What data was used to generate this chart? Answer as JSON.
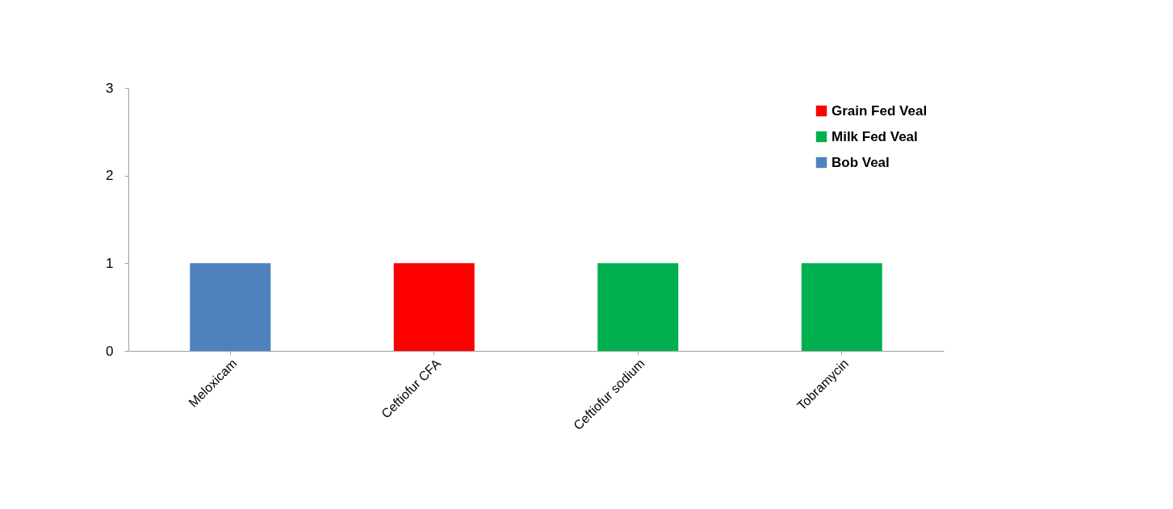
{
  "chart_data": {
    "type": "bar",
    "categories": [
      "Meloxicam",
      "Ceftiofur CFA",
      "Ceftiofur sodium",
      "Tobramycin"
    ],
    "series": [
      {
        "name": "Grain Fed Veal",
        "color": "#ff0000",
        "values": [
          null,
          1,
          null,
          null
        ]
      },
      {
        "name": "Milk Fed Veal",
        "color": "#00b050",
        "values": [
          null,
          null,
          1,
          1
        ]
      },
      {
        "name": "Bob Veal",
        "color": "#4f81bd",
        "values": [
          1,
          null,
          null,
          null
        ]
      }
    ],
    "ylim": [
      0,
      3
    ],
    "yticks": [
      0,
      1,
      2,
      3
    ],
    "grid": false,
    "legend": "top right"
  }
}
